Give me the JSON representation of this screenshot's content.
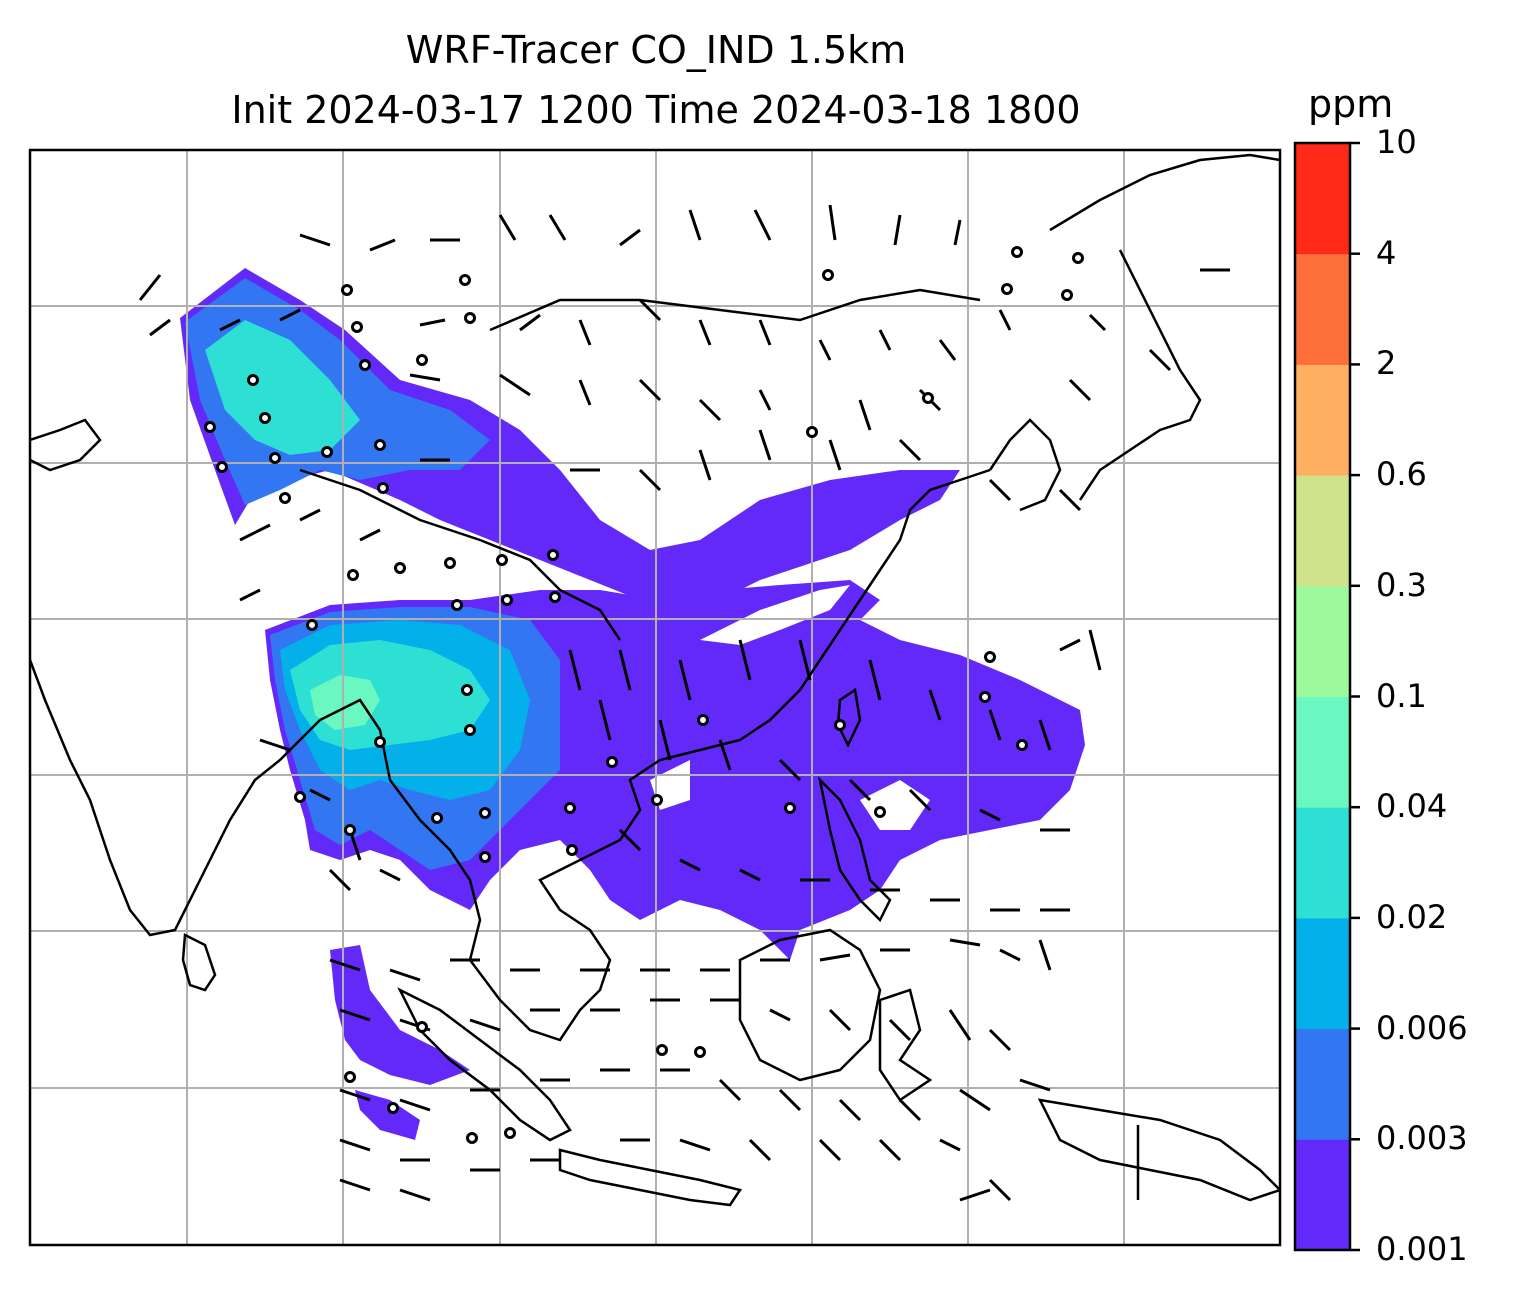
{
  "title": {
    "line1": "WRF-Tracer CO_IND 1.5km",
    "line2": "Init 2024-03-17 1200 Time 2024-03-18 1800"
  },
  "colorbar": {
    "units": "ppm",
    "ticks": [
      "0.001",
      "0.003",
      "0.006",
      "0.02",
      "0.04",
      "0.1",
      "0.3",
      "0.6",
      "2",
      "4",
      "10"
    ],
    "colors": [
      "#6229f8",
      "#3276f2",
      "#04b0ea",
      "#2ee0d3",
      "#6af7c0",
      "#9cfa9c",
      "#cfe38a",
      "#feb060",
      "#fe6f3b",
      "#fe2916"
    ]
  },
  "map": {
    "plume_colors": {
      "low": "#6229f8",
      "mid": "#3276f2",
      "cyan": "#2ee0d3",
      "teal": "#04b0ea",
      "green": "#6af7c0"
    }
  }
}
